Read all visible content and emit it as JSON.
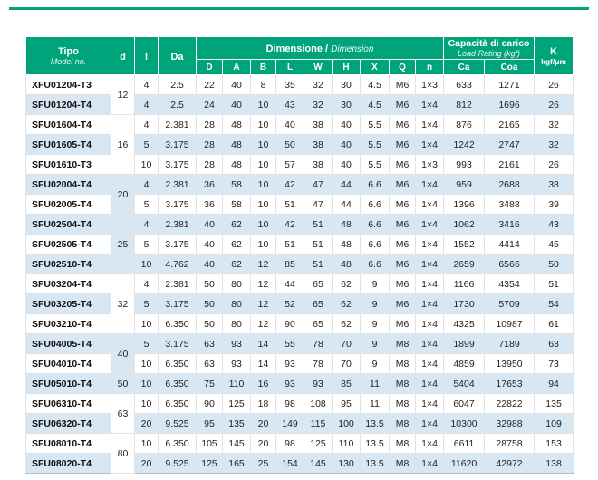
{
  "colors": {
    "header_green": "#00a47a",
    "stripe_blue": "#d9e7f3"
  },
  "table": {
    "header": {
      "model": {
        "title": "Tipo",
        "subtitle": "Model no."
      },
      "d": "d",
      "l": "l",
      "da": "Da",
      "dimension": {
        "title": "Dimensione",
        "separator": " / ",
        "subtitle": "Dimension"
      },
      "load": {
        "title": "Capacità di carico",
        "subtitle": "Load Rating (kgf)"
      },
      "k": {
        "title": "K",
        "subtitle": "kgf/μm"
      },
      "sub_columns": [
        "D",
        "A",
        "B",
        "L",
        "W",
        "H",
        "X",
        "Q",
        "n",
        "Ca",
        "Coa"
      ]
    },
    "groups": [
      {
        "d": "12",
        "rows": [
          {
            "model": "XFU01204-T3",
            "l": "4",
            "da": "2.5",
            "dims": [
              "22",
              "40",
              "8",
              "35",
              "32",
              "30",
              "4.5",
              "M6",
              "1×3"
            ],
            "ca": "633",
            "coa": "1271",
            "k": "26"
          },
          {
            "model": "SFU01204-T4",
            "l": "4",
            "da": "2.5",
            "dims": [
              "24",
              "40",
              "10",
              "43",
              "32",
              "30",
              "4.5",
              "M6",
              "1×4"
            ],
            "ca": "812",
            "coa": "1696",
            "k": "26"
          }
        ]
      },
      {
        "d": "16",
        "rows": [
          {
            "model": "SFU01604-T4",
            "l": "4",
            "da": "2.381",
            "dims": [
              "28",
              "48",
              "10",
              "40",
              "38",
              "40",
              "5.5",
              "M6",
              "1×4"
            ],
            "ca": "876",
            "coa": "2165",
            "k": "32"
          },
          {
            "model": "SFU01605-T4",
            "l": "5",
            "da": "3.175",
            "dims": [
              "28",
              "48",
              "10",
              "50",
              "38",
              "40",
              "5.5",
              "M6",
              "1×4"
            ],
            "ca": "1242",
            "coa": "2747",
            "k": "32"
          },
          {
            "model": "SFU01610-T3",
            "l": "10",
            "da": "3.175",
            "dims": [
              "28",
              "48",
              "10",
              "57",
              "38",
              "40",
              "5.5",
              "M6",
              "1×3"
            ],
            "ca": "993",
            "coa": "2161",
            "k": "26"
          }
        ]
      },
      {
        "d": "20",
        "rows": [
          {
            "model": "SFU02004-T4",
            "l": "4",
            "da": "2.381",
            "dims": [
              "36",
              "58",
              "10",
              "42",
              "47",
              "44",
              "6.6",
              "M6",
              "1×4"
            ],
            "ca": "959",
            "coa": "2688",
            "k": "38"
          },
          {
            "model": "SFU02005-T4",
            "l": "5",
            "da": "3.175",
            "dims": [
              "36",
              "58",
              "10",
              "51",
              "47",
              "44",
              "6.6",
              "M6",
              "1×4"
            ],
            "ca": "1396",
            "coa": "3488",
            "k": "39"
          }
        ]
      },
      {
        "d": "25",
        "rows": [
          {
            "model": "SFU02504-T4",
            "l": "4",
            "da": "2.381",
            "dims": [
              "40",
              "62",
              "10",
              "42",
              "51",
              "48",
              "6.6",
              "M6",
              "1×4"
            ],
            "ca": "1062",
            "coa": "3416",
            "k": "43"
          },
          {
            "model": "SFU02505-T4",
            "l": "5",
            "da": "3.175",
            "dims": [
              "40",
              "62",
              "10",
              "51",
              "51",
              "48",
              "6.6",
              "M6",
              "1×4"
            ],
            "ca": "1552",
            "coa": "4414",
            "k": "45"
          },
          {
            "model": "SFU02510-T4",
            "l": "10",
            "da": "4.762",
            "dims": [
              "40",
              "62",
              "12",
              "85",
              "51",
              "48",
              "6.6",
              "M6",
              "1×4"
            ],
            "ca": "2659",
            "coa": "6566",
            "k": "50"
          }
        ]
      },
      {
        "d": "32",
        "rows": [
          {
            "model": "SFU03204-T4",
            "l": "4",
            "da": "2.381",
            "dims": [
              "50",
              "80",
              "12",
              "44",
              "65",
              "62",
              "9",
              "M6",
              "1×4"
            ],
            "ca": "1166",
            "coa": "4354",
            "k": "51"
          },
          {
            "model": "SFU03205-T4",
            "l": "5",
            "da": "3.175",
            "dims": [
              "50",
              "80",
              "12",
              "52",
              "65",
              "62",
              "9",
              "M6",
              "1×4"
            ],
            "ca": "1730",
            "coa": "5709",
            "k": "54"
          },
          {
            "model": "SFU03210-T4",
            "l": "10",
            "da": "6.350",
            "dims": [
              "50",
              "80",
              "12",
              "90",
              "65",
              "62",
              "9",
              "M6",
              "1×4"
            ],
            "ca": "4325",
            "coa": "10987",
            "k": "61"
          }
        ]
      },
      {
        "d": "40",
        "rows": [
          {
            "model": "SFU04005-T4",
            "l": "5",
            "da": "3.175",
            "dims": [
              "63",
              "93",
              "14",
              "55",
              "78",
              "70",
              "9",
              "M8",
              "1×4"
            ],
            "ca": "1899",
            "coa": "7189",
            "k": "63"
          },
          {
            "model": "SFU04010-T4",
            "l": "10",
            "da": "6.350",
            "dims": [
              "63",
              "93",
              "14",
              "93",
              "78",
              "70",
              "9",
              "M8",
              "1×4"
            ],
            "ca": "4859",
            "coa": "13950",
            "k": "73"
          }
        ]
      },
      {
        "d": "50",
        "rows": [
          {
            "model": "SFU05010-T4",
            "l": "10",
            "da": "6.350",
            "dims": [
              "75",
              "110",
              "16",
              "93",
              "93",
              "85",
              "11",
              "M8",
              "1×4"
            ],
            "ca": "5404",
            "coa": "17653",
            "k": "94"
          }
        ]
      },
      {
        "d": "63",
        "rows": [
          {
            "model": "SFU06310-T4",
            "l": "10",
            "da": "6.350",
            "dims": [
              "90",
              "125",
              "18",
              "98",
              "108",
              "95",
              "11",
              "M8",
              "1×4"
            ],
            "ca": "6047",
            "coa": "22822",
            "k": "135"
          },
          {
            "model": "SFU06320-T4",
            "l": "20",
            "da": "9.525",
            "dims": [
              "95",
              "135",
              "20",
              "149",
              "115",
              "100",
              "13.5",
              "M8",
              "1×4"
            ],
            "ca": "10300",
            "coa": "32988",
            "k": "109"
          }
        ]
      },
      {
        "d": "80",
        "rows": [
          {
            "model": "SFU08010-T4",
            "l": "10",
            "da": "6.350",
            "dims": [
              "105",
              "145",
              "20",
              "98",
              "125",
              "110",
              "13.5",
              "M8",
              "1×4"
            ],
            "ca": "6611",
            "coa": "28758",
            "k": "153"
          },
          {
            "model": "SFU08020-T4",
            "l": "20",
            "da": "9.525",
            "dims": [
              "125",
              "165",
              "25",
              "154",
              "145",
              "130",
              "13.5",
              "M8",
              "1×4"
            ],
            "ca": "11620",
            "coa": "42972",
            "k": "138"
          }
        ]
      }
    ]
  }
}
